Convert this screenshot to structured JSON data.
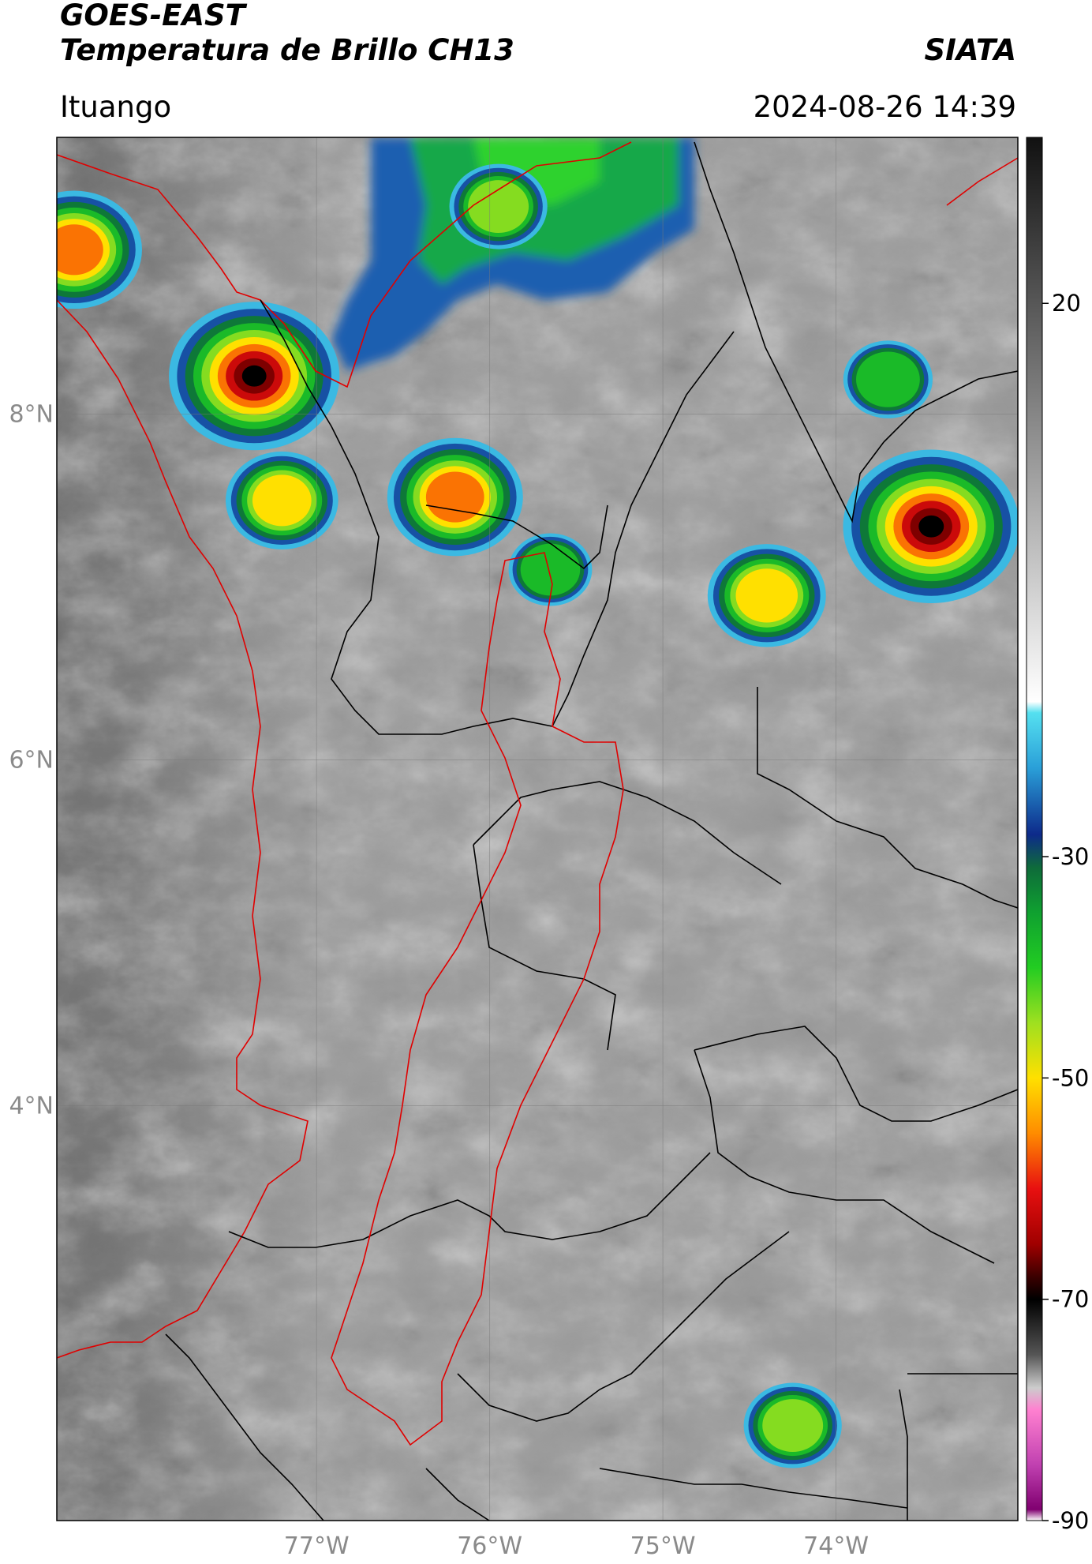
{
  "header": {
    "satellite": "GOES-EAST",
    "product": "Temperatura de Brillo CH13",
    "organization": "SIATA",
    "region": "Ituango",
    "timestamp": "2024-08-26 14:39"
  },
  "map": {
    "lon_range": [
      -78.5,
      -72.95
    ],
    "lat_range": [
      1.6,
      9.6
    ],
    "lon_ticks": [
      {
        "value": -77,
        "label": "77°W"
      },
      {
        "value": -76,
        "label": "76°W"
      },
      {
        "value": -75,
        "label": "75°W"
      },
      {
        "value": -74,
        "label": "74°W"
      }
    ],
    "lat_ticks": [
      {
        "value": 8,
        "label": "8°N"
      },
      {
        "value": 6,
        "label": "6°N"
      },
      {
        "value": 4,
        "label": "4°N"
      }
    ],
    "grid": true,
    "base_color": "#9a9a9a",
    "coastline_color": "#e00000",
    "department_border_color": "#000000",
    "highlight_region_color": "#e00000",
    "convective_cells": [
      {
        "lon": -77.36,
        "lat": 8.22,
        "min_temp": -70
      },
      {
        "lon": -76.2,
        "lat": 7.52,
        "min_temp": -58
      },
      {
        "lon": -73.45,
        "lat": 7.35,
        "min_temp": -72
      },
      {
        "lon": -74.4,
        "lat": 6.95,
        "min_temp": -52
      },
      {
        "lon": -75.95,
        "lat": 9.2,
        "min_temp": -45
      },
      {
        "lon": -78.4,
        "lat": 8.95,
        "min_temp": -58
      },
      {
        "lon": -77.2,
        "lat": 7.5,
        "min_temp": -50
      },
      {
        "lon": -73.7,
        "lat": 8.2,
        "min_temp": -42
      },
      {
        "lon": -74.25,
        "lat": 2.15,
        "min_temp": -45
      },
      {
        "lon": -75.65,
        "lat": 7.1,
        "min_temp": -40
      }
    ]
  },
  "colorbar": {
    "range": [
      -90,
      35
    ],
    "ticks": [
      {
        "value": 20,
        "label": "20"
      },
      {
        "value": -30,
        "label": "-30"
      },
      {
        "value": -50,
        "label": "-50"
      },
      {
        "value": -70,
        "label": "-70"
      },
      {
        "value": -90,
        "label": "-90"
      }
    ],
    "stops": [
      {
        "value": 35,
        "color": "#111111"
      },
      {
        "value": -16,
        "color": "#ffffff"
      },
      {
        "value": -17,
        "color": "#55e0f0"
      },
      {
        "value": -22,
        "color": "#2a9fd8"
      },
      {
        "value": -28,
        "color": "#0d2a8a"
      },
      {
        "value": -31,
        "color": "#0e6b3a"
      },
      {
        "value": -35,
        "color": "#0fa030"
      },
      {
        "value": -40,
        "color": "#22cc22"
      },
      {
        "value": -45,
        "color": "#9ee020"
      },
      {
        "value": -50,
        "color": "#ffe000"
      },
      {
        "value": -55,
        "color": "#ff8c00"
      },
      {
        "value": -60,
        "color": "#e81010"
      },
      {
        "value": -65,
        "color": "#a00000"
      },
      {
        "value": -68,
        "color": "#3a0000"
      },
      {
        "value": -70,
        "color": "#000000"
      },
      {
        "value": -75,
        "color": "#555555"
      },
      {
        "value": -78,
        "color": "#cccccc"
      },
      {
        "value": -80,
        "color": "#ff80d0"
      },
      {
        "value": -85,
        "color": "#c040b0"
      },
      {
        "value": -89,
        "color": "#800070"
      },
      {
        "value": -90,
        "color": "#ffffff"
      }
    ]
  }
}
